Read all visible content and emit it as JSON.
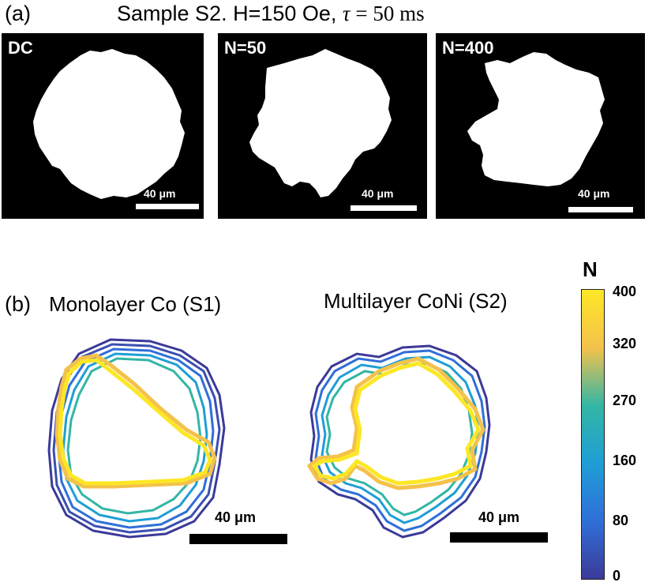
{
  "panel_a": {
    "label": "(a)",
    "title_prefix": "Sample S2. H=150 Oe, ",
    "title_tau": "τ",
    "title_eq": " = 50 ms",
    "images": [
      {
        "label": "DC",
        "scale_label": "40 μm"
      },
      {
        "label": "N=50",
        "scale_label": "40 μm"
      },
      {
        "label": "N=400",
        "scale_label": "40 μm"
      }
    ]
  },
  "panel_b": {
    "label": "(b)",
    "plots": [
      {
        "title": "Monolayer Co (S1)",
        "scale_label": "40 μm"
      },
      {
        "title": "Multilayer CoNi (S2)",
        "scale_label": "40 μm"
      }
    ],
    "colorbar": {
      "title": "N",
      "ticks": [
        "400",
        "320",
        "270",
        "160",
        "80",
        "0"
      ],
      "colors": [
        "#fde725",
        "#f4c24b",
        "#33b6a4",
        "#1f9ed6",
        "#2f6fd8",
        "#3b3a98"
      ]
    }
  },
  "colors": {
    "image_background": "#000000",
    "domain_fill": "#ffffff"
  }
}
